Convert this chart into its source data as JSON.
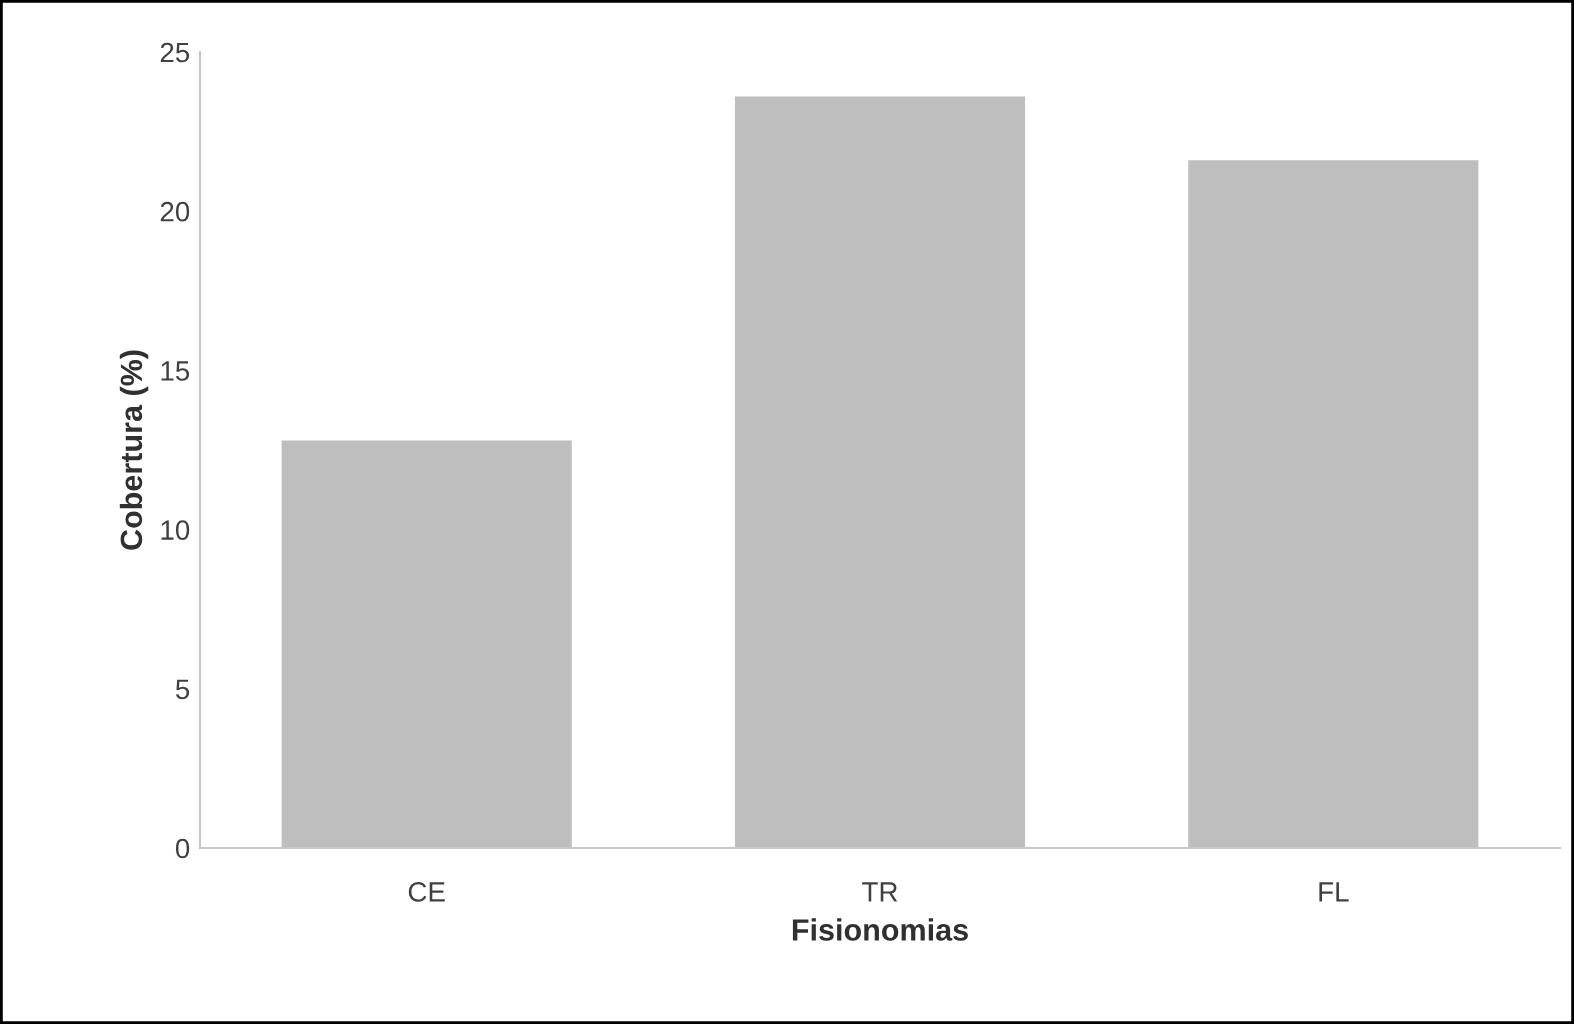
{
  "chart_data": {
    "type": "bar",
    "xlabel": "Fisionomias",
    "ylabel": "Cobertura (%)",
    "categories": [
      "CE",
      "TR",
      "FL"
    ],
    "values": [
      12.8,
      23.6,
      21.6
    ],
    "color": "#bebebe",
    "ylim": [
      0,
      25
    ],
    "yticks": [
      0,
      5,
      10,
      15,
      20,
      25
    ],
    "grid": false
  }
}
